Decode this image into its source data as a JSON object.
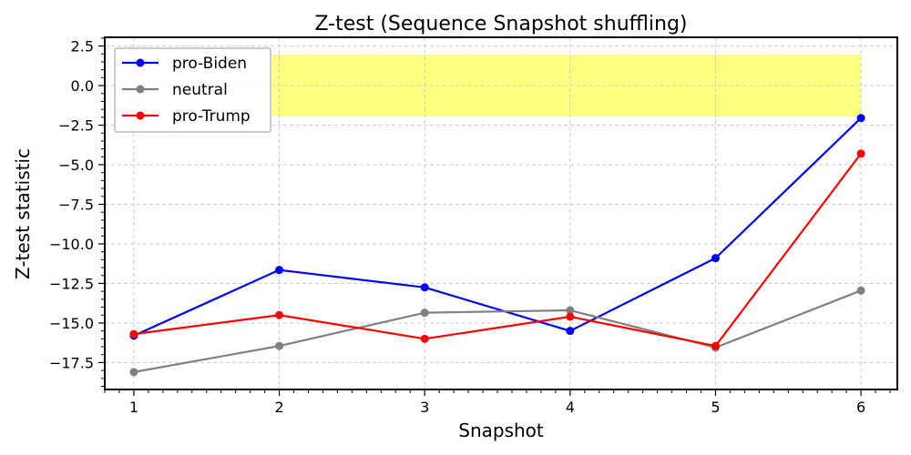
{
  "chart_data": {
    "type": "line",
    "title": "Z-test (Sequence Snapshot shuffling)",
    "xlabel": "Snapshot",
    "ylabel": "Z-test statistic",
    "x": [
      1,
      2,
      3,
      4,
      5,
      6
    ],
    "xlim": [
      0.8,
      6.25
    ],
    "ylim": [
      -19.2,
      3.05
    ],
    "xticks": [
      1,
      2,
      3,
      4,
      5,
      6
    ],
    "xtick_labels": [
      "1",
      "2",
      "3",
      "4",
      "5",
      "6"
    ],
    "yticks": [
      -17.5,
      -15,
      -12.5,
      -10,
      -7.5,
      -5,
      -2.5,
      0,
      2.5
    ],
    "ytick_labels": [
      "−17.5",
      "−15.0",
      "−12.5",
      "−10.0",
      "−7.5",
      "−5.0",
      "−2.5",
      "0.0",
      "2.5"
    ],
    "grid": true,
    "legend_position": "top-left",
    "significance_band": {
      "x_start": 1.95,
      "x_end": 6.0,
      "y_low": -1.96,
      "y_high": 1.96,
      "color": "#ffff00"
    },
    "series": [
      {
        "name": "pro-Biden",
        "color": "#0000ff",
        "values": [
          -15.8,
          -11.65,
          -12.75,
          -15.5,
          -10.9,
          -2.05
        ]
      },
      {
        "name": "neutral",
        "color": "#808080",
        "values": [
          -18.1,
          -16.45,
          -14.35,
          -14.2,
          -16.55,
          -12.95
        ]
      },
      {
        "name": "pro-Trump",
        "color": "#ff0000",
        "values": [
          -15.7,
          -14.5,
          -16.0,
          -14.6,
          -16.45,
          -4.3
        ]
      }
    ]
  }
}
